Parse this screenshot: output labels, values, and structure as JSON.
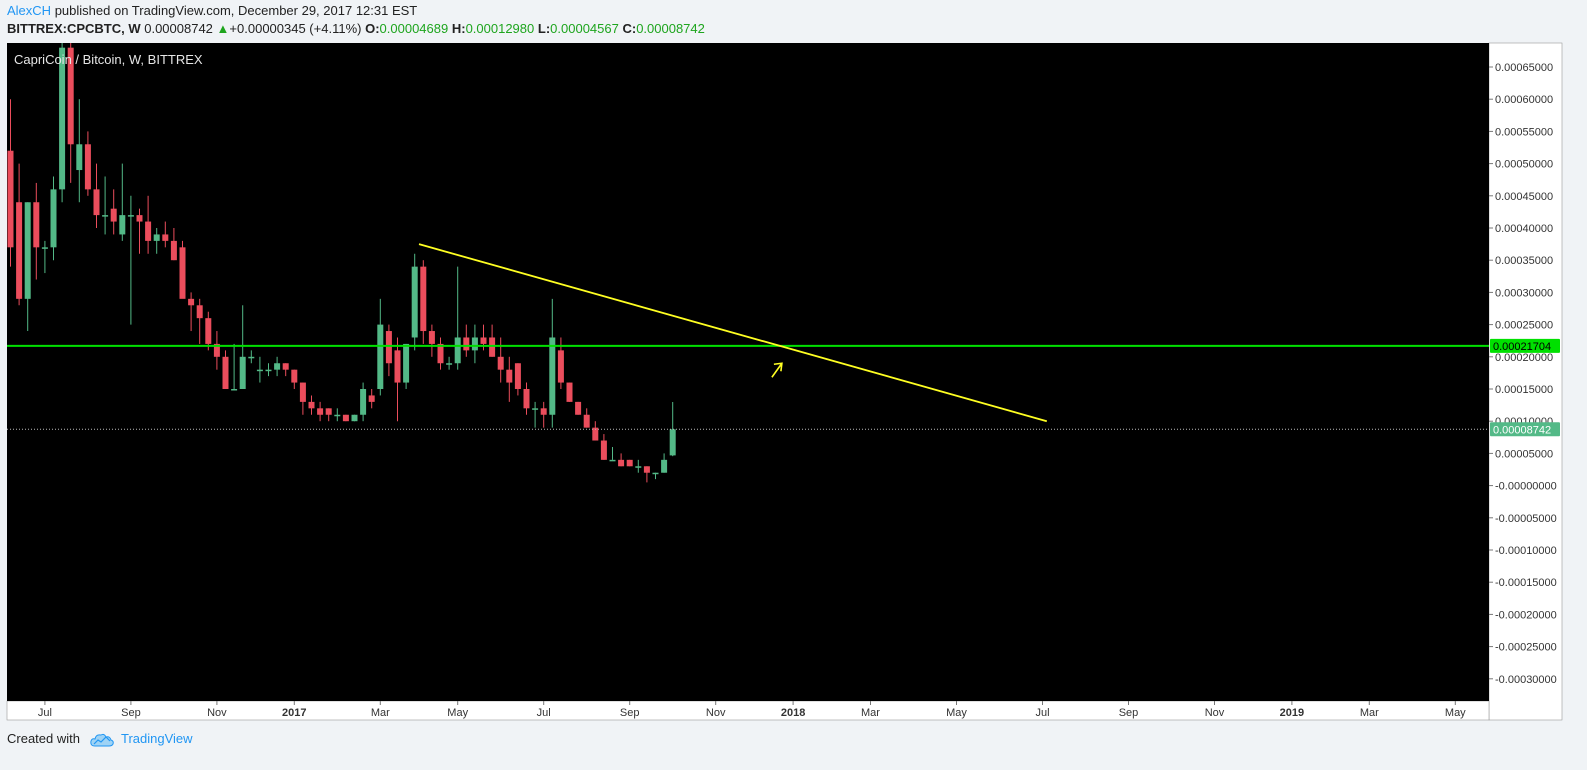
{
  "header": {
    "author": "AlexCH",
    "published_text": "published on TradingView.com, December 29, 2017 12:31 EST",
    "symbol": "BITTREX:CPCBTC, W",
    "last_price": "0.00008742",
    "change_arrow": "▲",
    "change": "+0.00000345 (+4.11%)",
    "open_label": "O:",
    "open": "0.00004689",
    "high_label": "H:",
    "high": "0.00012980",
    "low_label": "L:",
    "low": "0.00004567",
    "close_label": "C:",
    "close": "0.00008742"
  },
  "footer": {
    "created_with": "Created with",
    "brand": "TradingView",
    "cloud_icon": "tradingview-cloud-icon"
  },
  "colors": {
    "background": "#000000",
    "up": "#53b987",
    "down": "#eb4d5c",
    "support_line": "#00e000",
    "trend_line": "#ffff22",
    "price_badge": "#53b987",
    "axis_bg": "#ffffff"
  },
  "chart_data": {
    "type": "candlestick",
    "title": "CapriCoin / Bitcoin, W, BITTREX",
    "ylim": [
      -0.00033,
      0.00068
    ],
    "y_ticks": [
      {
        "value": 0.00065,
        "label": "0.00065000"
      },
      {
        "value": 0.0006,
        "label": "0.00060000"
      },
      {
        "value": 0.00055,
        "label": "0.00055000"
      },
      {
        "value": 0.0005,
        "label": "0.00050000"
      },
      {
        "value": 0.00045,
        "label": "0.00045000"
      },
      {
        "value": 0.0004,
        "label": "0.00040000"
      },
      {
        "value": 0.00035,
        "label": "0.00035000"
      },
      {
        "value": 0.0003,
        "label": "0.00030000"
      },
      {
        "value": 0.00025,
        "label": "0.00025000"
      },
      {
        "value": 0.0002,
        "label": "0.00020000"
      },
      {
        "value": 0.00015,
        "label": "0.00015000"
      },
      {
        "value": 0.0001,
        "label": "0.00010000"
      },
      {
        "value": 5e-05,
        "label": "0.00005000"
      },
      {
        "value": 0.0,
        "label": "-0.00000000"
      },
      {
        "value": -5e-05,
        "label": "-0.00005000"
      },
      {
        "value": -0.0001,
        "label": "-0.00010000"
      },
      {
        "value": -0.00015,
        "label": "-0.00015000"
      },
      {
        "value": -0.0002,
        "label": "-0.00020000"
      },
      {
        "value": -0.00025,
        "label": "-0.00025000"
      },
      {
        "value": -0.0003,
        "label": "-0.00030000"
      }
    ],
    "x_range_weeks": [
      -1,
      173
    ],
    "x_ticks": [
      {
        "week": 4,
        "label": "Jul",
        "bold": false
      },
      {
        "week": 14,
        "label": "Sep",
        "bold": false
      },
      {
        "week": 24,
        "label": "Nov",
        "bold": false
      },
      {
        "week": 33,
        "label": "2017",
        "bold": true
      },
      {
        "week": 43,
        "label": "Mar",
        "bold": false
      },
      {
        "week": 52,
        "label": "May",
        "bold": false
      },
      {
        "week": 62,
        "label": "Jul",
        "bold": false
      },
      {
        "week": 72,
        "label": "Sep",
        "bold": false
      },
      {
        "week": 82,
        "label": "Nov",
        "bold": false
      },
      {
        "week": 91,
        "label": "2018",
        "bold": true
      },
      {
        "week": 100,
        "label": "Mar",
        "bold": false
      },
      {
        "week": 110,
        "label": "May",
        "bold": false
      },
      {
        "week": 120,
        "label": "Jul",
        "bold": false
      },
      {
        "week": 130,
        "label": "Sep",
        "bold": false
      },
      {
        "week": 140,
        "label": "Nov",
        "bold": false
      },
      {
        "week": 149,
        "label": "2019",
        "bold": true
      },
      {
        "week": 158,
        "label": "Mar",
        "bold": false
      },
      {
        "week": 168,
        "label": "May",
        "bold": false
      }
    ],
    "candles": [
      {
        "o": 0.00052,
        "h": 0.0006,
        "l": 0.00034,
        "c": 0.00037
      },
      {
        "o": 0.00044,
        "h": 0.0005,
        "l": 0.00028,
        "c": 0.00029
      },
      {
        "o": 0.00029,
        "h": 0.00044,
        "l": 0.00024,
        "c": 0.00044
      },
      {
        "o": 0.00044,
        "h": 0.00047,
        "l": 0.00032,
        "c": 0.00037
      },
      {
        "o": 0.00037,
        "h": 0.00038,
        "l": 0.00033,
        "c": 0.00037
      },
      {
        "o": 0.00037,
        "h": 0.00048,
        "l": 0.00035,
        "c": 0.00046
      },
      {
        "o": 0.00046,
        "h": 0.0007,
        "l": 0.00044,
        "c": 0.00068
      },
      {
        "o": 0.00068,
        "h": 0.00069,
        "l": 0.00047,
        "c": 0.00053
      },
      {
        "o": 0.00049,
        "h": 0.0006,
        "l": 0.00044,
        "c": 0.00053
      },
      {
        "o": 0.00053,
        "h": 0.00055,
        "l": 0.00045,
        "c": 0.00046
      },
      {
        "o": 0.00046,
        "h": 0.0005,
        "l": 0.0004,
        "c": 0.00042
      },
      {
        "o": 0.00042,
        "h": 0.00048,
        "l": 0.00039,
        "c": 0.00042
      },
      {
        "o": 0.00043,
        "h": 0.00046,
        "l": 0.00039,
        "c": 0.00041
      },
      {
        "o": 0.00039,
        "h": 0.0005,
        "l": 0.00038,
        "c": 0.00042
      },
      {
        "o": 0.00042,
        "h": 0.00045,
        "l": 0.00025,
        "c": 0.00042
      },
      {
        "o": 0.00042,
        "h": 0.00043,
        "l": 0.00036,
        "c": 0.00041
      },
      {
        "o": 0.00041,
        "h": 0.00045,
        "l": 0.00036,
        "c": 0.00038
      },
      {
        "o": 0.00038,
        "h": 0.0004,
        "l": 0.00036,
        "c": 0.00039
      },
      {
        "o": 0.00039,
        "h": 0.00041,
        "l": 0.00037,
        "c": 0.00038
      },
      {
        "o": 0.00038,
        "h": 0.0004,
        "l": 0.00035,
        "c": 0.00035
      },
      {
        "o": 0.00037,
        "h": 0.00038,
        "l": 0.0003,
        "c": 0.00029
      },
      {
        "o": 0.00029,
        "h": 0.0003,
        "l": 0.00024,
        "c": 0.00028
      },
      {
        "o": 0.00028,
        "h": 0.00029,
        "l": 0.00022,
        "c": 0.00026
      },
      {
        "o": 0.00026,
        "h": 0.00027,
        "l": 0.00021,
        "c": 0.00022
      },
      {
        "o": 0.00022,
        "h": 0.00024,
        "l": 0.00018,
        "c": 0.0002
      },
      {
        "o": 0.0002,
        "h": 0.00021,
        "l": 0.00015,
        "c": 0.00015
      },
      {
        "o": 0.00015,
        "h": 0.00022,
        "l": 0.00015,
        "c": 0.00015
      },
      {
        "o": 0.00015,
        "h": 0.00028,
        "l": 0.00015,
        "c": 0.0002
      },
      {
        "o": 0.0002,
        "h": 0.00021,
        "l": 0.00019,
        "c": 0.0002
      },
      {
        "o": 0.00018,
        "h": 0.0002,
        "l": 0.00016,
        "c": 0.00018
      },
      {
        "o": 0.00018,
        "h": 0.00019,
        "l": 0.00017,
        "c": 0.00018
      },
      {
        "o": 0.00018,
        "h": 0.0002,
        "l": 0.00017,
        "c": 0.00019
      },
      {
        "o": 0.00019,
        "h": 0.00019,
        "l": 0.00017,
        "c": 0.00018
      },
      {
        "o": 0.00018,
        "h": 0.00018,
        "l": 0.00015,
        "c": 0.00016
      },
      {
        "o": 0.00016,
        "h": 0.00016,
        "l": 0.00011,
        "c": 0.00013
      },
      {
        "o": 0.00013,
        "h": 0.00014,
        "l": 0.00011,
        "c": 0.00012
      },
      {
        "o": 0.00012,
        "h": 0.00013,
        "l": 0.0001,
        "c": 0.00011
      },
      {
        "o": 0.00012,
        "h": 0.00012,
        "l": 0.0001,
        "c": 0.00011
      },
      {
        "o": 0.00011,
        "h": 0.00012,
        "l": 0.0001,
        "c": 0.00011
      },
      {
        "o": 0.00011,
        "h": 0.00011,
        "l": 0.0001,
        "c": 0.0001
      },
      {
        "o": 0.0001,
        "h": 0.00011,
        "l": 0.0001,
        "c": 0.00011
      },
      {
        "o": 0.00011,
        "h": 0.00016,
        "l": 0.0001,
        "c": 0.00015
      },
      {
        "o": 0.00014,
        "h": 0.00015,
        "l": 0.00012,
        "c": 0.00013
      },
      {
        "o": 0.00015,
        "h": 0.00029,
        "l": 0.00014,
        "c": 0.00025
      },
      {
        "o": 0.00024,
        "h": 0.00025,
        "l": 0.00017,
        "c": 0.00019
      },
      {
        "o": 0.00021,
        "h": 0.00023,
        "l": 0.0001,
        "c": 0.00016
      },
      {
        "o": 0.00016,
        "h": 0.00022,
        "l": 0.00015,
        "c": 0.00022
      },
      {
        "o": 0.00023,
        "h": 0.00036,
        "l": 0.00021,
        "c": 0.00034
      },
      {
        "o": 0.00034,
        "h": 0.00035,
        "l": 0.00022,
        "c": 0.00024
      },
      {
        "o": 0.00024,
        "h": 0.00025,
        "l": 0.0002,
        "c": 0.00022
      },
      {
        "o": 0.00022,
        "h": 0.00023,
        "l": 0.00018,
        "c": 0.00019
      },
      {
        "o": 0.00019,
        "h": 0.0002,
        "l": 0.00018,
        "c": 0.00019
      },
      {
        "o": 0.00019,
        "h": 0.00034,
        "l": 0.00018,
        "c": 0.00023
      },
      {
        "o": 0.00023,
        "h": 0.00025,
        "l": 0.0002,
        "c": 0.00021
      },
      {
        "o": 0.00021,
        "h": 0.00025,
        "l": 0.00019,
        "c": 0.00023
      },
      {
        "o": 0.00023,
        "h": 0.00025,
        "l": 0.00021,
        "c": 0.00022
      },
      {
        "o": 0.00023,
        "h": 0.00025,
        "l": 0.0002,
        "c": 0.0002
      },
      {
        "o": 0.0002,
        "h": 0.00023,
        "l": 0.00016,
        "c": 0.00018
      },
      {
        "o": 0.00018,
        "h": 0.0002,
        "l": 0.00013,
        "c": 0.00016
      },
      {
        "o": 0.00019,
        "h": 0.00019,
        "l": 0.00014,
        "c": 0.00015
      },
      {
        "o": 0.00015,
        "h": 0.00016,
        "l": 0.00011,
        "c": 0.00012
      },
      {
        "o": 0.00012,
        "h": 0.00013,
        "l": 9e-05,
        "c": 0.00012
      },
      {
        "o": 0.00012,
        "h": 0.00013,
        "l": 9e-05,
        "c": 0.00011
      },
      {
        "o": 0.00011,
        "h": 0.00029,
        "l": 9e-05,
        "c": 0.00023
      },
      {
        "o": 0.00021,
        "h": 0.00023,
        "l": 0.00015,
        "c": 0.00016
      },
      {
        "o": 0.00016,
        "h": 0.00016,
        "l": 0.00013,
        "c": 0.00013
      },
      {
        "o": 0.00013,
        "h": 0.00013,
        "l": 0.00011,
        "c": 0.00011
      },
      {
        "o": 0.00011,
        "h": 0.00012,
        "l": 9e-05,
        "c": 9e-05
      },
      {
        "o": 9e-05,
        "h": 0.0001,
        "l": 7e-05,
        "c": 7e-05
      },
      {
        "o": 7e-05,
        "h": 8e-05,
        "l": 4e-05,
        "c": 4e-05
      },
      {
        "o": 4e-05,
        "h": 6e-05,
        "l": 4e-05,
        "c": 4e-05
      },
      {
        "o": 4e-05,
        "h": 5e-05,
        "l": 3e-05,
        "c": 3e-05
      },
      {
        "o": 4e-05,
        "h": 4e-05,
        "l": 3e-05,
        "c": 3e-05
      },
      {
        "o": 3e-05,
        "h": 4e-05,
        "l": 2e-05,
        "c": 3e-05
      },
      {
        "o": 3e-05,
        "h": 3e-05,
        "l": 5e-06,
        "c": 2e-05
      },
      {
        "o": 2e-05,
        "h": 2e-05,
        "l": 1e-05,
        "c": 2e-05
      },
      {
        "o": 2e-05,
        "h": 5e-05,
        "l": 2e-05,
        "c": 4e-05
      },
      {
        "o": 4.689e-05,
        "h": 0.0001298,
        "l": 4.567e-05,
        "c": 8.742e-05
      }
    ],
    "candles_start_week": 0,
    "hlines": [
      {
        "value": 0.00021704,
        "label": "0.00021704",
        "style": "solid",
        "color_key": "support_line"
      },
      {
        "value": 8.742e-05,
        "label": "0.00008742",
        "style": "dotted",
        "color_key": "price_badge"
      }
    ],
    "trendline": {
      "week1": 47.5,
      "value1": 0.000375,
      "week2": 120.5,
      "value2": 0.0001
    },
    "arrow": {
      "week": 89,
      "value": 0.00019,
      "direction": "up-right"
    }
  }
}
